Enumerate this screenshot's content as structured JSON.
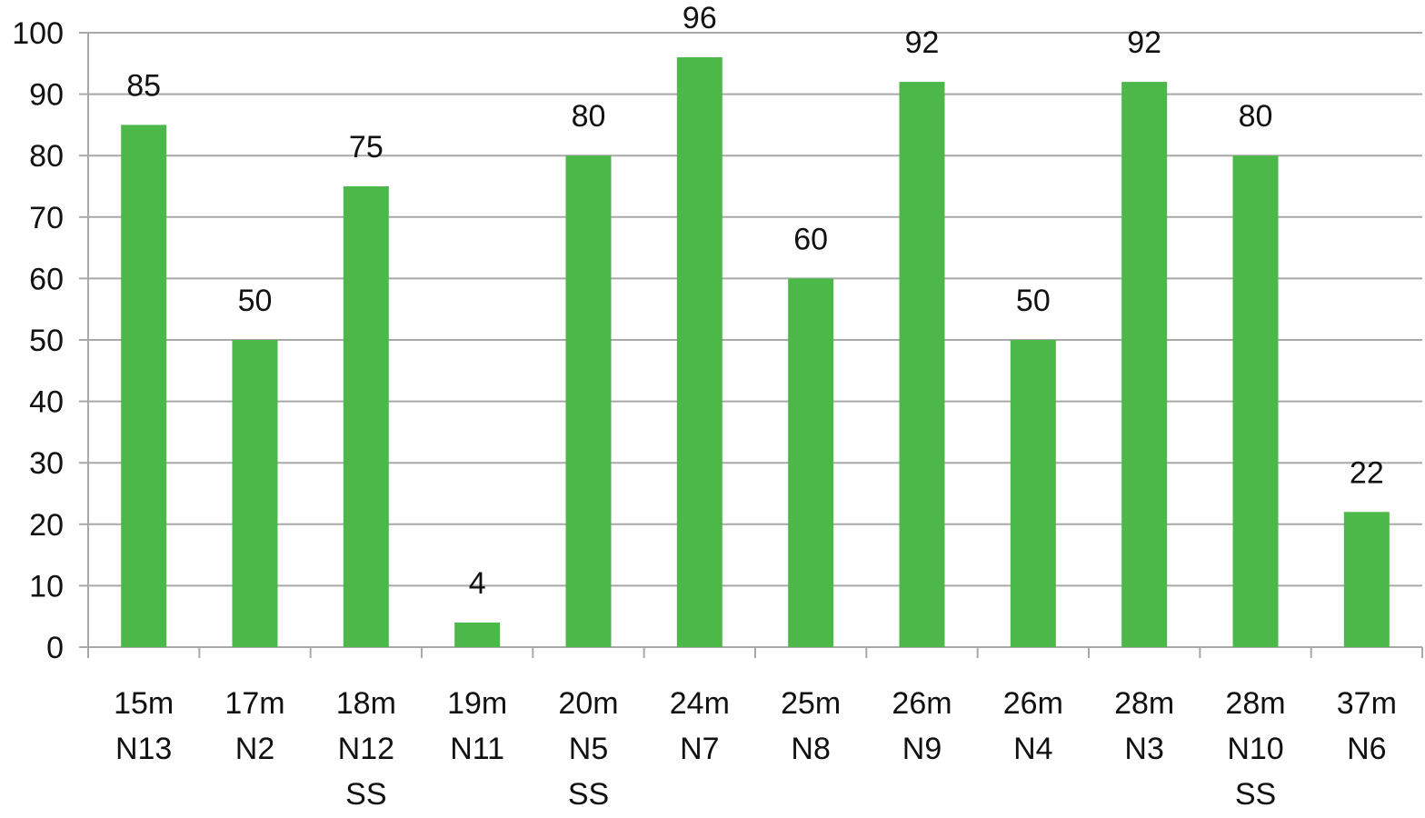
{
  "chart_data": {
    "type": "bar",
    "categories": [
      [
        "15m",
        "N13"
      ],
      [
        "17m",
        "N2"
      ],
      [
        "18m",
        "N12",
        "SS"
      ],
      [
        "19m",
        "N11"
      ],
      [
        "20m",
        "N5",
        "SS"
      ],
      [
        "24m",
        "N7"
      ],
      [
        "25m",
        "N8"
      ],
      [
        "26m",
        "N9"
      ],
      [
        "26m",
        "N4"
      ],
      [
        "28m",
        "N3"
      ],
      [
        "28m",
        "N10",
        "SS"
      ],
      [
        "37m",
        "N6"
      ]
    ],
    "values": [
      85,
      50,
      75,
      4,
      80,
      96,
      60,
      92,
      50,
      92,
      80,
      22
    ],
    "color": "#4cb849",
    "ylim": [
      0,
      100
    ],
    "yticks": [
      0,
      10,
      20,
      30,
      40,
      50,
      60,
      70,
      80,
      90,
      100
    ],
    "grid": true
  }
}
